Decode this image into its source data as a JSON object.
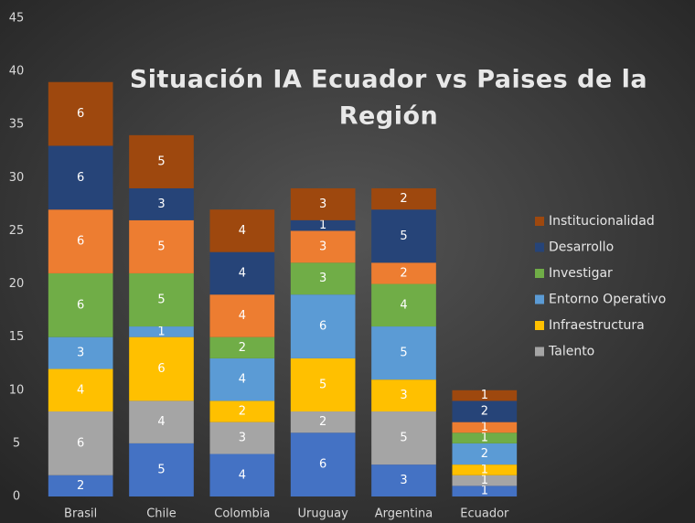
{
  "chart_data": {
    "type": "stacked_bar",
    "title": [
      "Situación  IA Ecuador vs Paises de la",
      "Región"
    ],
    "categories": [
      "Brasil",
      "Chile",
      "Colombia",
      "Uruguay",
      "Argentina",
      "Ecuador"
    ],
    "series": [
      {
        "name": null,
        "color": "#4472c4",
        "values": [
          2,
          5,
          4,
          6,
          3,
          1
        ]
      },
      {
        "name": "Talento",
        "color": "#a5a5a5",
        "values": [
          6,
          4,
          3,
          2,
          5,
          1
        ]
      },
      {
        "name": "Infraestructura",
        "color": "#ffc000",
        "values": [
          4,
          6,
          2,
          5,
          3,
          1
        ]
      },
      {
        "name": "Entorno Operativo",
        "color": "#5b9bd5",
        "values": [
          3,
          1,
          4,
          6,
          5,
          2
        ]
      },
      {
        "name": "Investigar",
        "color": "#70ad47",
        "values": [
          6,
          5,
          2,
          3,
          4,
          1
        ]
      },
      {
        "name": null,
        "color": "#ed7d31",
        "values": [
          6,
          5,
          4,
          3,
          2,
          1
        ]
      },
      {
        "name": "Desarrollo",
        "color": "#264478",
        "values": [
          6,
          3,
          4,
          1,
          5,
          2
        ]
      },
      {
        "name": "Institucionalidad",
        "color": "#9e480e",
        "values": [
          6,
          5,
          4,
          3,
          2,
          1
        ]
      }
    ],
    "ylim": [
      0,
      45
    ],
    "yticks": [
      0,
      5,
      10,
      15,
      20,
      25,
      30,
      35,
      40,
      45
    ],
    "grid": false,
    "legend": "right"
  }
}
